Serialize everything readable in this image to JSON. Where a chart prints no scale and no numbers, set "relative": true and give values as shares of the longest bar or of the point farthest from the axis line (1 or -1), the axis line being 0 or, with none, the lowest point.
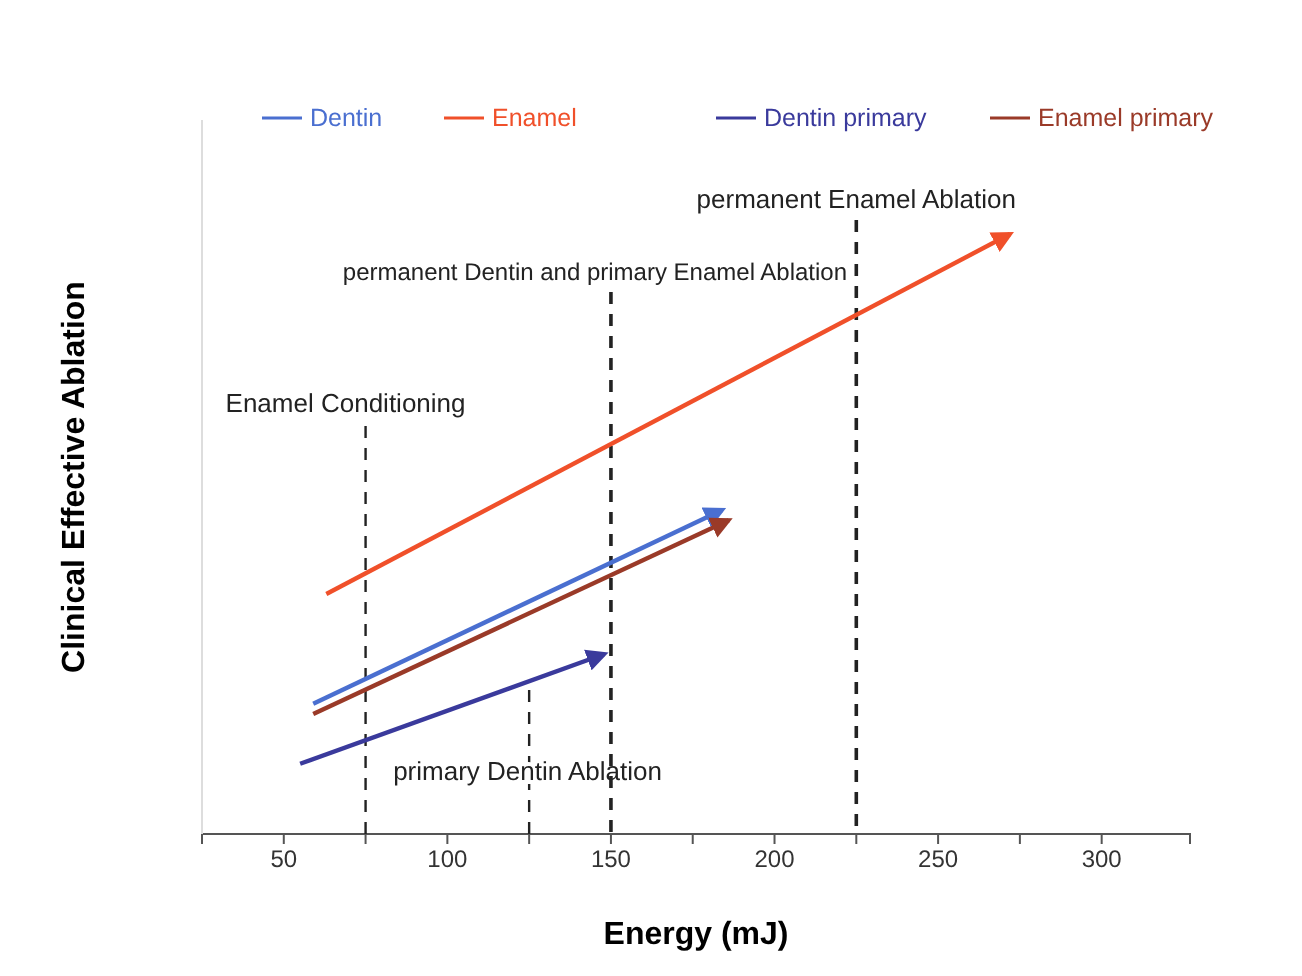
{
  "chart_data": {
    "type": "line",
    "relative": true,
    "xlabel": "Energy (mJ)",
    "ylabel": "Clinical Effective Ablation",
    "xlim": [
      25,
      327
    ],
    "xticks": [
      50,
      {
        "value": 75,
        "label": null
      },
      100,
      {
        "value": 125,
        "label": null
      },
      150,
      {
        "value": 175,
        "label": null
      },
      200,
      {
        "value": 225,
        "label": null
      },
      250,
      {
        "value": 275,
        "label": null
      },
      300
    ],
    "legend": "top",
    "marker": "none",
    "line_style": "solid",
    "series": [
      {
        "name": "Dentin",
        "color": "#4a6fd0",
        "x": [
          59,
          184
        ],
        "values": [
          0.217,
          0.54
        ]
      },
      {
        "name": "Enamel",
        "color": "#f0502a",
        "x": [
          63,
          272
        ],
        "values": [
          0.4,
          1
        ]
      },
      {
        "name": "Dentin primary",
        "color": "#3a3a9c",
        "x": [
          55,
          148
        ],
        "values": [
          0.117,
          0.3
        ]
      },
      {
        "name": "Enamel primary",
        "color": "#9a3a28",
        "x": [
          59,
          186
        ],
        "values": [
          0.2,
          0.523
        ]
      }
    ],
    "ref_lines": [
      {
        "axis": "x",
        "value": 75,
        "label": "Enamel Conditioning",
        "line_style": "dashed",
        "color": "#222222"
      },
      {
        "axis": "x",
        "value": 125,
        "label": "primary Dentin Ablation",
        "line_style": "dashed",
        "color": "#222222"
      },
      {
        "axis": "x",
        "value": 150,
        "label": "permanent Dentin and primary Enamel Ablation",
        "line_style": "dashed",
        "color": "#222222"
      },
      {
        "axis": "x",
        "value": 225,
        "label": "permanent Enamel Ablation",
        "line_style": "dashed",
        "color": "#222222"
      }
    ]
  }
}
